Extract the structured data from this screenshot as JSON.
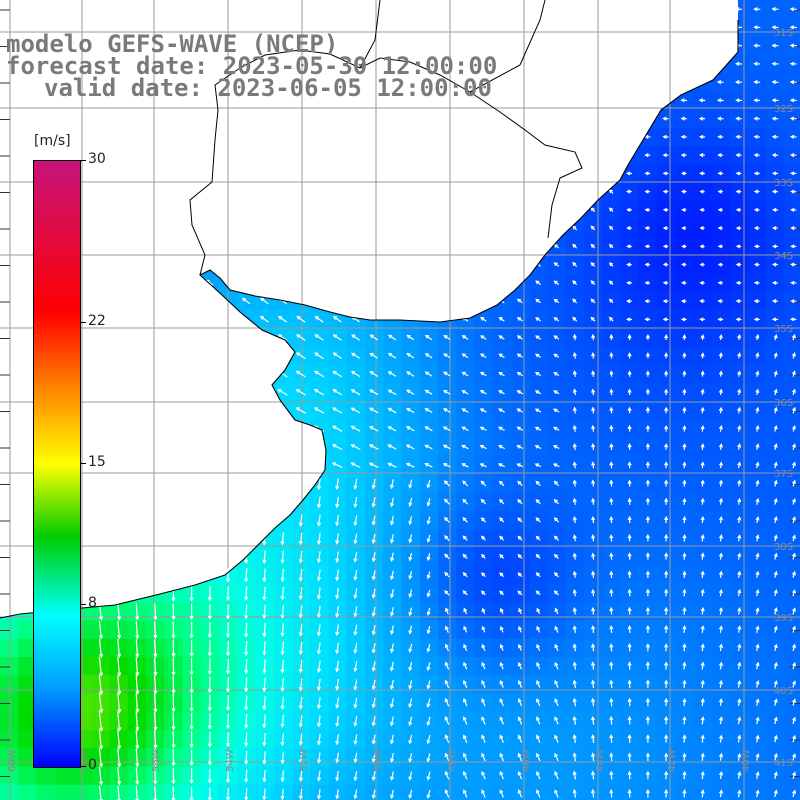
{
  "title": {
    "line1": "modelo GEFS-WAVE (NCEP)",
    "line2": "forecast date: 2023-05-30 12:00:00",
    "line3": "valid date: 2023-06-05 12:00:00"
  },
  "colorbar": {
    "unit": "[m/s]",
    "ticks": [
      "30",
      "22",
      "15",
      "8",
      "0"
    ],
    "tick_values": [
      30,
      22,
      15,
      8,
      0
    ],
    "range": [
      0,
      30
    ],
    "colors": [
      "#0000ff",
      "#009dff",
      "#00ffff",
      "#00cc00",
      "#ffff00",
      "#ff7f00",
      "#ff0000",
      "#c7137d"
    ]
  },
  "map": {
    "variable": "wind speed with direction arrows",
    "land_color": "#ffffff",
    "grid_color": "#9a9a9a",
    "lon_labels": [
      "60W",
      "58W",
      "56W",
      "54W",
      "52W",
      "50W",
      "48W",
      "46W",
      "44W",
      "42W",
      "40W"
    ],
    "lat_labels": [
      "31S",
      "32S",
      "33S",
      "34S",
      "35S",
      "36S",
      "37S",
      "38S",
      "39S",
      "40S",
      "41S"
    ]
  }
}
